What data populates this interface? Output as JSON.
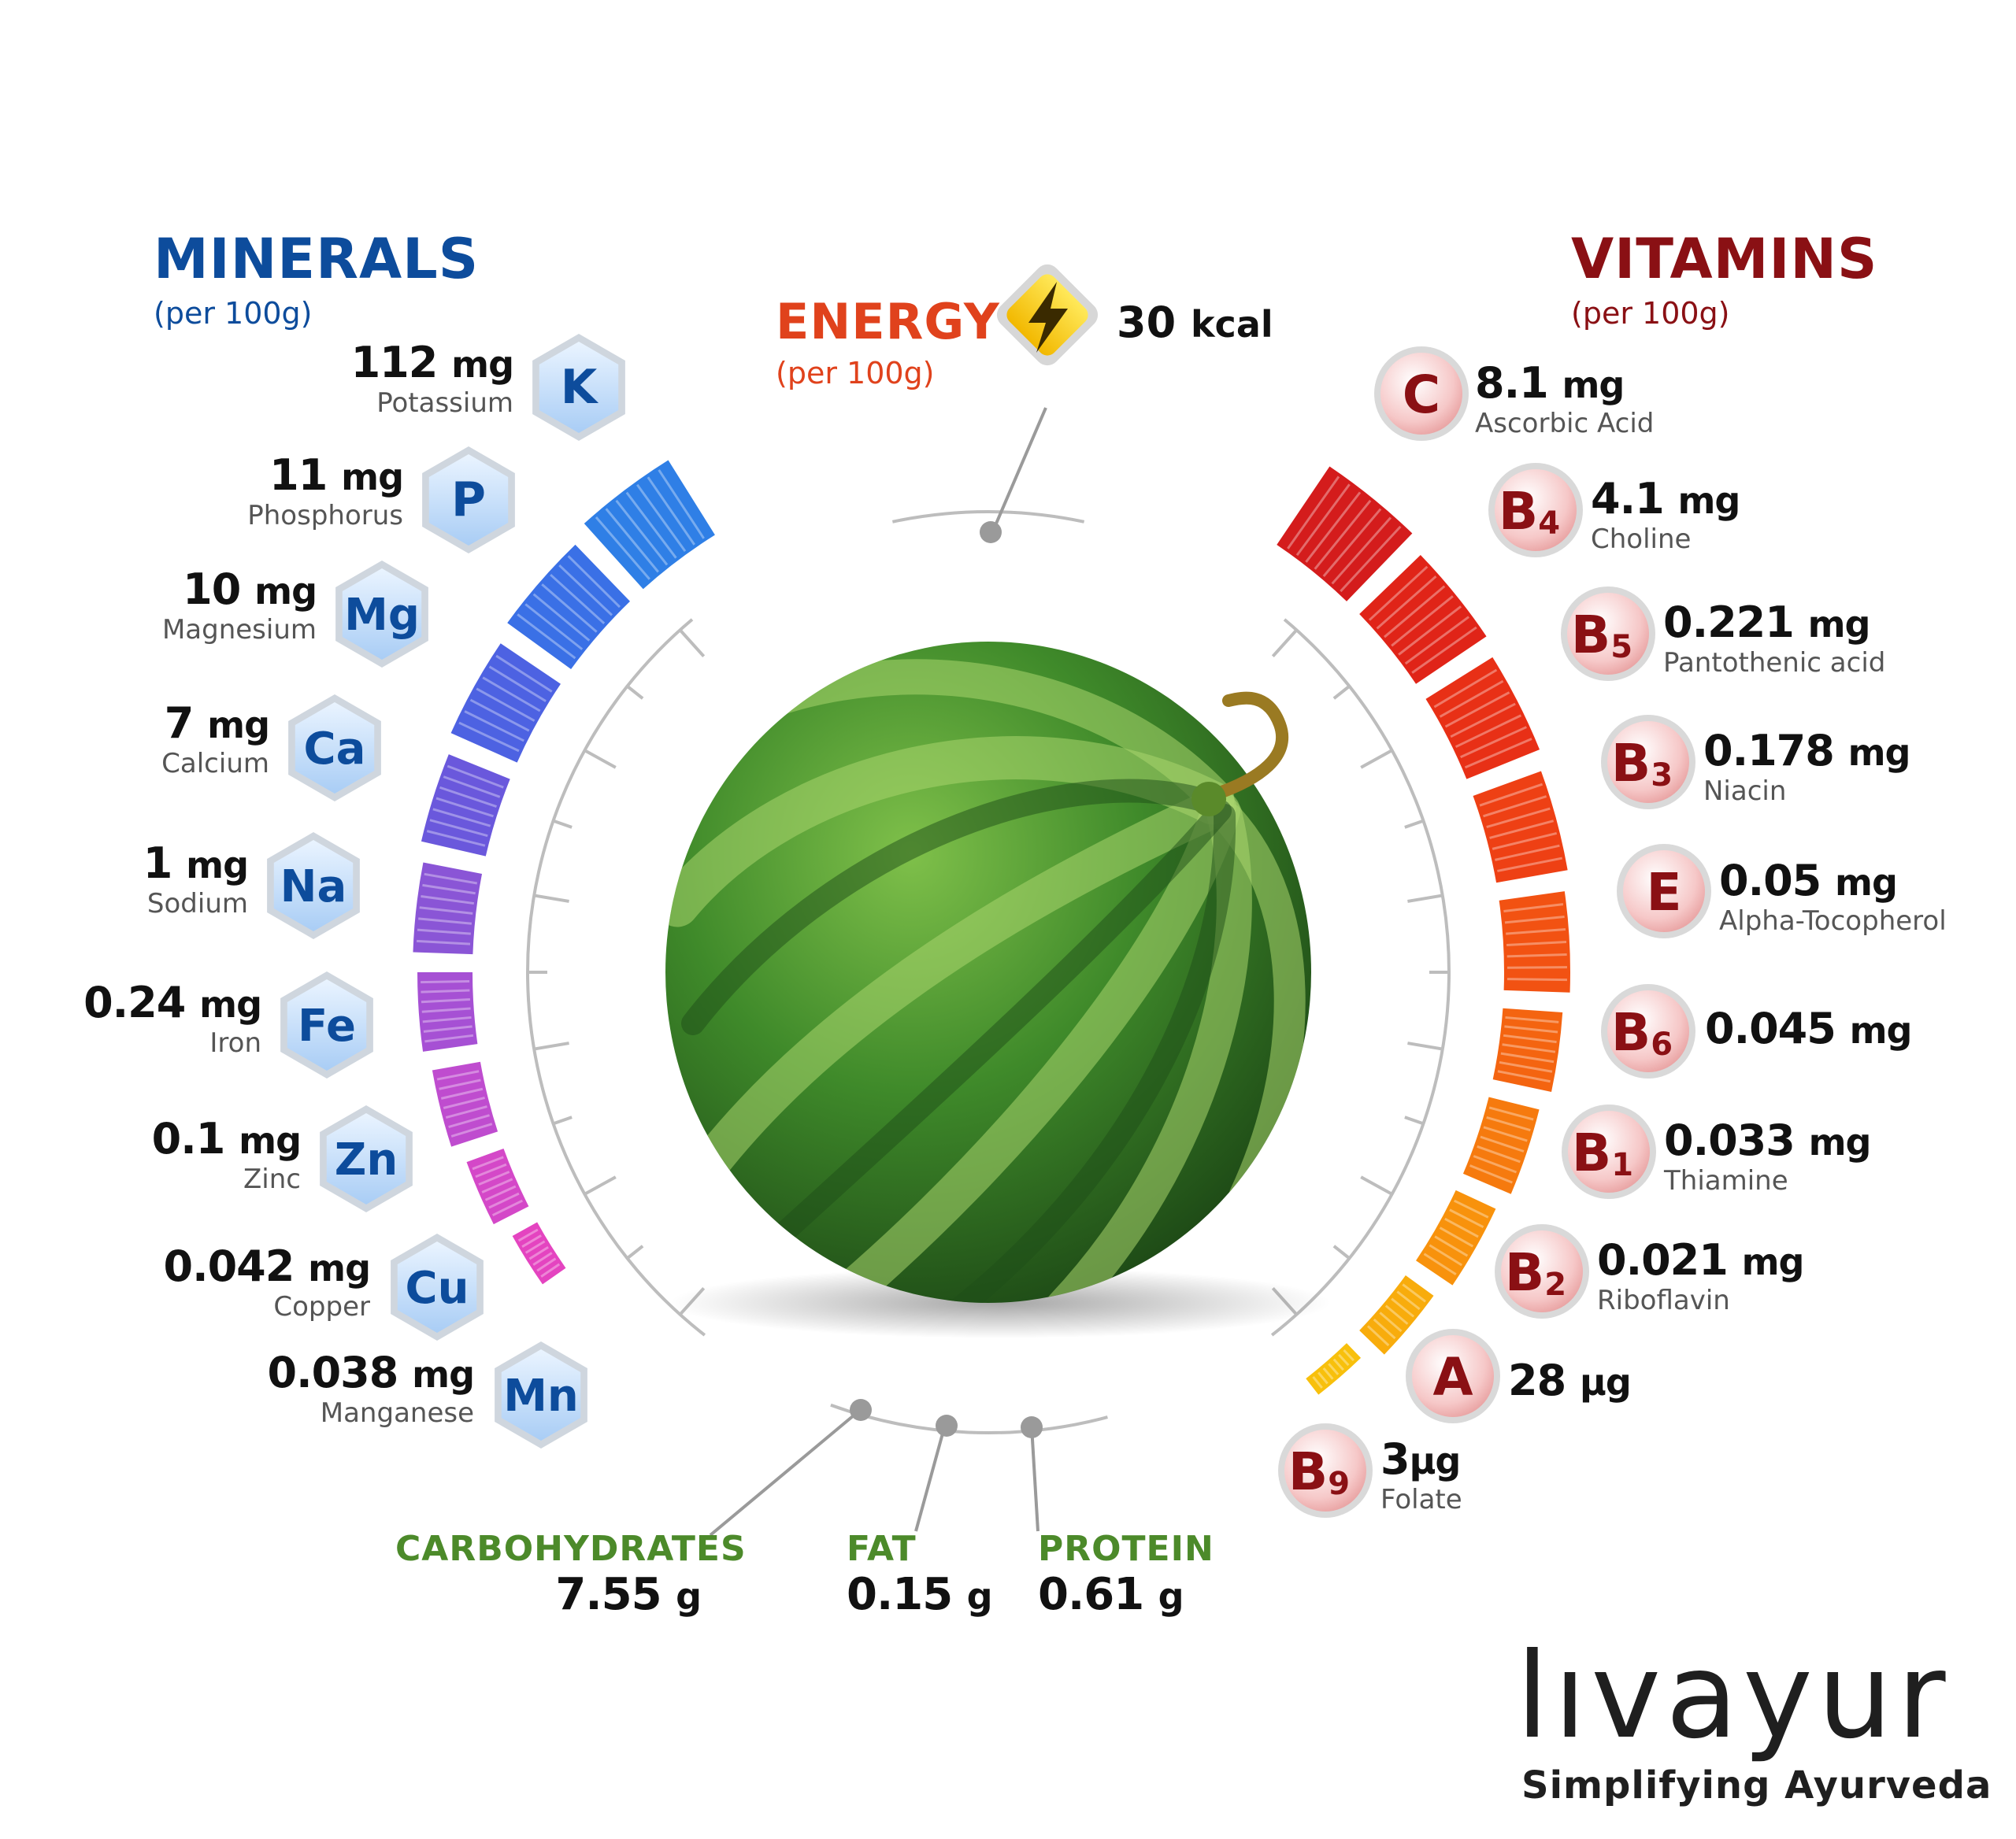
{
  "minerals": {
    "title": "MINERALS",
    "subtitle": "(per 100g)",
    "items": [
      {
        "symbol": "K",
        "amount": "112",
        "unit": "mg",
        "name": "Potassium",
        "color": "#2f7fe6"
      },
      {
        "symbol": "P",
        "amount": "11",
        "unit": "mg",
        "name": "Phosphorus",
        "color": "#3a70e6"
      },
      {
        "symbol": "Mg",
        "amount": "10",
        "unit": "mg",
        "name": "Magnesium",
        "color": "#4d62e2"
      },
      {
        "symbol": "Ca",
        "amount": "7",
        "unit": "mg",
        "name": "Calcium",
        "color": "#6a58dc"
      },
      {
        "symbol": "Na",
        "amount": "1",
        "unit": "mg",
        "name": "Sodium",
        "color": "#8a55d6"
      },
      {
        "symbol": "Fe",
        "amount": "0.24",
        "unit": "mg",
        "name": "Iron",
        "color": "#a650d4"
      },
      {
        "symbol": "Zn",
        "amount": "0.1",
        "unit": "mg",
        "name": "Zinc",
        "color": "#bf4ccf"
      },
      {
        "symbol": "Cu",
        "amount": "0.042",
        "unit": "mg",
        "name": "Copper",
        "color": "#d448c8"
      },
      {
        "symbol": "Mn",
        "amount": "0.038",
        "unit": "mg",
        "name": "Manganese",
        "color": "#e444c0"
      }
    ]
  },
  "vitamins": {
    "title": "VITAMINS",
    "subtitle": "(per 100g)",
    "items": [
      {
        "letter": "C",
        "sub": "",
        "amount": "8.1",
        "unit": "mg",
        "name": "Ascorbic Acid",
        "color": "#d41c1c"
      },
      {
        "letter": "B",
        "sub": "4",
        "amount": "4.1",
        "unit": "mg",
        "name": "Choline",
        "color": "#e02418"
      },
      {
        "letter": "B",
        "sub": "5",
        "amount": "0.221",
        "unit": "mg",
        "name": "Pantothenic acid",
        "color": "#e83016"
      },
      {
        "letter": "B",
        "sub": "3",
        "amount": "0.178",
        "unit": "mg",
        "name": "Niacin",
        "color": "#ee4014"
      },
      {
        "letter": "E",
        "sub": "",
        "amount": "0.05",
        "unit": "mg",
        "name": "Alpha-Tocopherol",
        "color": "#f25212"
      },
      {
        "letter": "B",
        "sub": "6",
        "amount": "0.045",
        "unit": "mg",
        "name": "",
        "color": "#f46410"
      },
      {
        "letter": "B",
        "sub": "1",
        "amount": "0.033",
        "unit": "mg",
        "name": "Thiamine",
        "color": "#f67a0e"
      },
      {
        "letter": "B",
        "sub": "2",
        "amount": "0.021",
        "unit": "mg",
        "name": "Riboflavin",
        "color": "#f8920c"
      },
      {
        "letter": "A",
        "sub": "",
        "amount": "28",
        "unit": "µg",
        "name": "",
        "color": "#f8ac0c"
      },
      {
        "letter": "B",
        "sub": "9",
        "amount": "3",
        "unit": "µg",
        "name": "Folate",
        "color": "#f8c00c"
      }
    ]
  },
  "energy": {
    "title": "ENERGY",
    "subtitle": "(per 100g)",
    "value": "30",
    "unit": "kcal"
  },
  "macros": [
    {
      "name": "CARBOHYDRATES",
      "value": "7.55",
      "unit": "g"
    },
    {
      "name": "FAT",
      "value": "0.15",
      "unit": "g"
    },
    {
      "name": "PROTEIN",
      "value": "0.61",
      "unit": "g"
    }
  ],
  "brand": {
    "logo": "LIVAYUR",
    "logo_display": "lıvayur",
    "tagline": "Simplifying Ayurveda"
  },
  "colors": {
    "minerals_title": "#0d4c9c",
    "vitamins_title": "#8a1014",
    "energy_title": "#e0421c",
    "macro_label": "#4c8a2a",
    "watermelon": "#3f8a2a"
  },
  "icons": {
    "energy": "lightning-bolt-icon",
    "mineral_badge": "hexagon-badge-icon",
    "vitamin_badge": "circle-badge-icon",
    "fruit": "watermelon-icon"
  }
}
